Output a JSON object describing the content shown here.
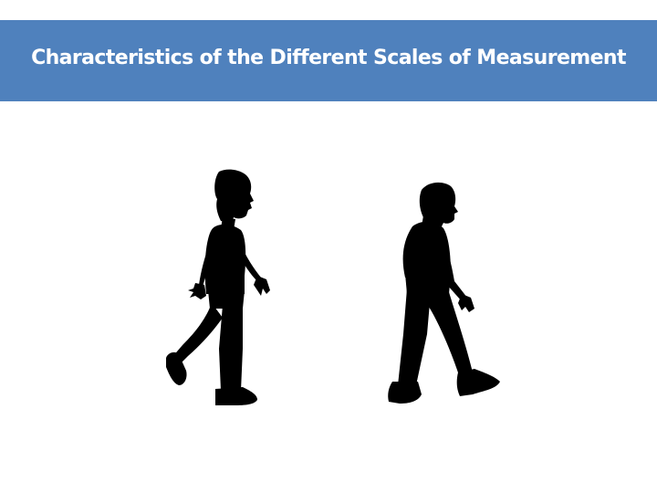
{
  "slide": {
    "title": "Characteristics of the Different Scales of Measurement"
  },
  "colors": {
    "title_bar": "#4f81bd",
    "title_text": "#ffffff",
    "silhouette": "#000000",
    "background": "#ffffff"
  },
  "figures": [
    {
      "name": "walking-man-upright-silhouette-icon"
    },
    {
      "name": "walking-man-stooped-silhouette-icon"
    }
  ]
}
